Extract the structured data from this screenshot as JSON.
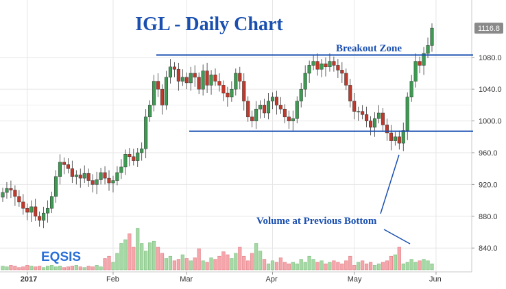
{
  "chart_data": {
    "type": "candlestick",
    "title": "IGL - Daily Chart",
    "watermark": "EQSIS",
    "last_price": "1116.8",
    "y_ticks": [
      "1080.0",
      "1040.0",
      "1000.0",
      "960.0",
      "920.0",
      "880.0",
      "840.0"
    ],
    "y_tick_values": [
      1080,
      1040,
      1000,
      960,
      920,
      880,
      840
    ],
    "ylim": [
      810,
      1135
    ],
    "x_ticks": [
      "2017",
      "Feb",
      "Mar",
      "Apr",
      "May",
      "Jun"
    ],
    "x_tick_index": [
      6,
      27,
      45,
      66,
      86,
      106
    ],
    "annotations": {
      "breakout": "Breakout Zone",
      "volume_note": "Volume at Previous Bottom"
    },
    "levels": {
      "resistance": 1083,
      "support": 987
    },
    "colors": {
      "up": "#3e9a52",
      "down": "#c0392b",
      "vol_up": "#a6d8a6",
      "vol_down": "#f5a6ab",
      "lines": "#1a4fb0"
    },
    "close": [
      910,
      915,
      913,
      905,
      898,
      890,
      885,
      892,
      880,
      875,
      884,
      890,
      905,
      930,
      948,
      945,
      940,
      930,
      932,
      928,
      934,
      925,
      920,
      926,
      935,
      928,
      922,
      925,
      935,
      942,
      958,
      955,
      950,
      960,
      965,
      1005,
      1020,
      1050,
      1040,
      1020,
      1055,
      1068,
      1065,
      1050,
      1055,
      1048,
      1060,
      1055,
      1040,
      1063,
      1045,
      1058,
      1050,
      1045,
      1035,
      1030,
      1040,
      1060,
      1050,
      1025,
      1005,
      1000,
      1015,
      1020,
      1010,
      1025,
      1030,
      1020,
      1015,
      1005,
      1000,
      1003,
      1025,
      1040,
      1060,
      1070,
      1075,
      1065,
      1072,
      1068,
      1075,
      1070,
      1064,
      1060,
      1045,
      1025,
      1012,
      1012,
      1008,
      1000,
      992,
      1003,
      1010,
      995,
      985,
      975,
      980,
      972,
      988,
      1030,
      1050,
      1075,
      1070,
      1085,
      1095,
      1116.8
    ],
    "volume": [
      5,
      4,
      6,
      5,
      3,
      4,
      6,
      5,
      4,
      5,
      3,
      5,
      6,
      4,
      5,
      3,
      4,
      5,
      6,
      4,
      3,
      5,
      4,
      6,
      4,
      15,
      18,
      10,
      22,
      35,
      40,
      48,
      30,
      55,
      35,
      25,
      36,
      38,
      30,
      22,
      15,
      18,
      12,
      14,
      20,
      15,
      12,
      16,
      28,
      12,
      10,
      16,
      14,
      18,
      24,
      20,
      15,
      22,
      30,
      18,
      12,
      22,
      35,
      25,
      14,
      8,
      12,
      10,
      16,
      10,
      8,
      10,
      8,
      14,
      10,
      18,
      14,
      10,
      12,
      8,
      10,
      12,
      10,
      8,
      12,
      18,
      6,
      10,
      12,
      8,
      10,
      6,
      8,
      10,
      12,
      18,
      20,
      30,
      8,
      10,
      14,
      10,
      12,
      14,
      12,
      8
    ],
    "vol_max": 100
  }
}
